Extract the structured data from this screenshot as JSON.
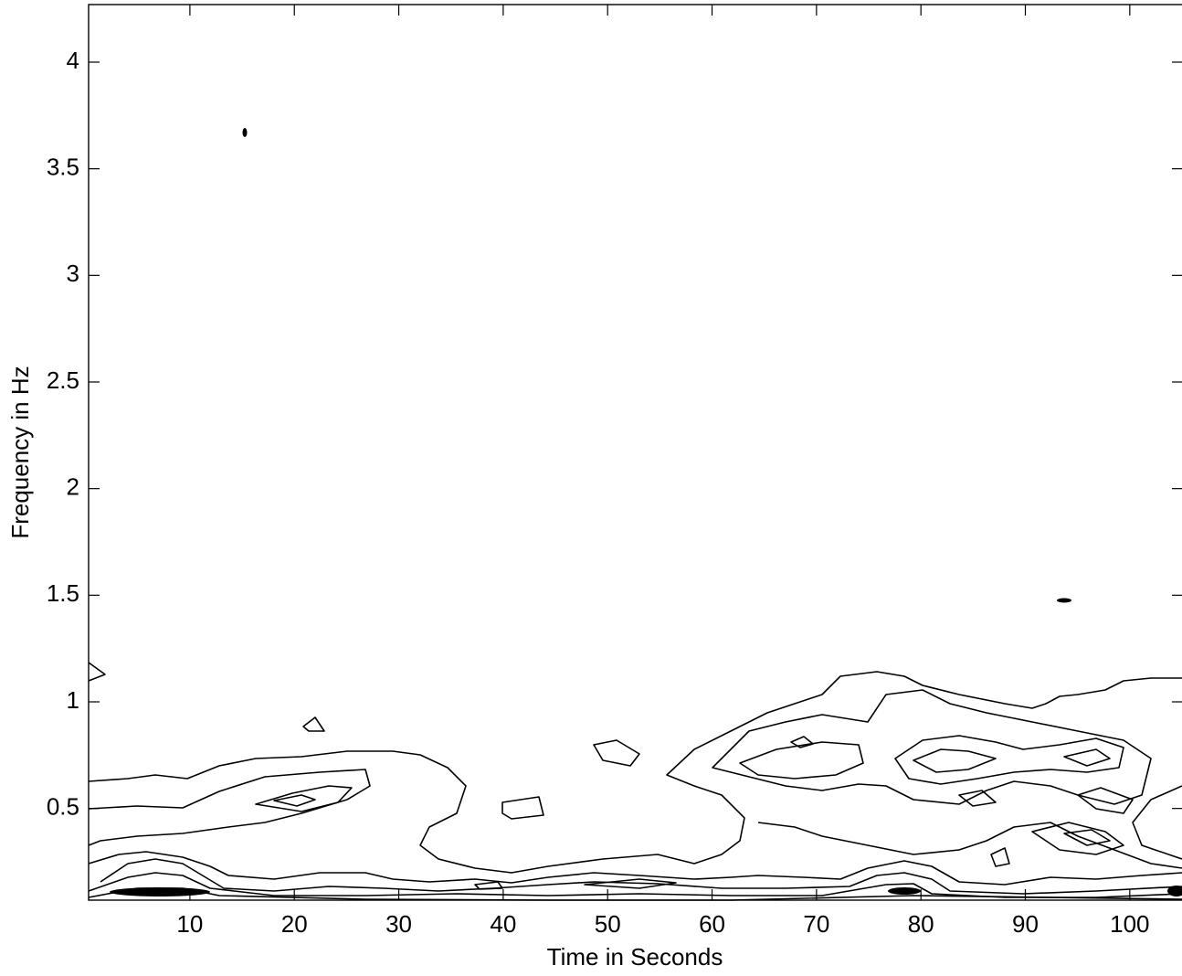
{
  "chart_data": {
    "type": "contour",
    "x_label": "Time in Seconds",
    "y_label": "Frequency in Hz",
    "xlim": [
      0.3,
      105
    ],
    "ylim": [
      0.07,
      4.27
    ],
    "xticks": [
      10,
      20,
      30,
      40,
      50,
      60,
      70,
      80,
      90,
      100
    ],
    "yticks": [
      0.5,
      1,
      1.5,
      2,
      2.5,
      3,
      3.5,
      4
    ],
    "color": "#000000"
  }
}
